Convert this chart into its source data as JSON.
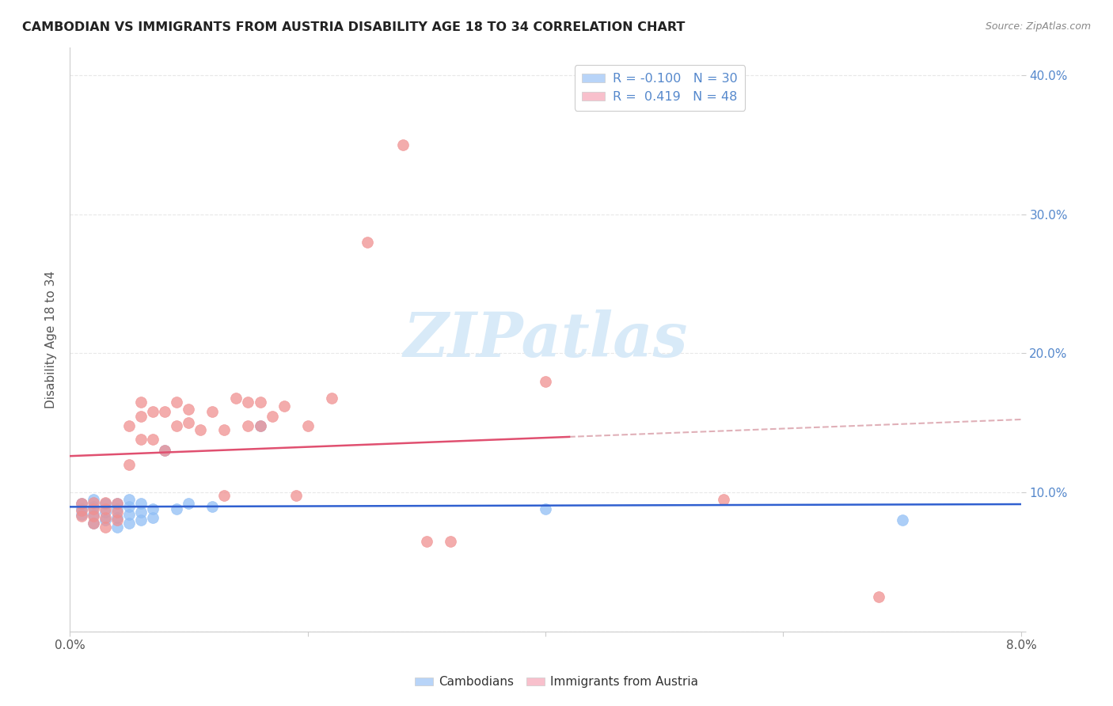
{
  "title": "CAMBODIAN VS IMMIGRANTS FROM AUSTRIA DISABILITY AGE 18 TO 34 CORRELATION CHART",
  "source": "Source: ZipAtlas.com",
  "ylabel": "Disability Age 18 to 34",
  "xlim": [
    0.0,
    0.08
  ],
  "ylim": [
    0.0,
    0.42
  ],
  "yticks": [
    0.0,
    0.1,
    0.2,
    0.3,
    0.4
  ],
  "xticks": [
    0.0,
    0.02,
    0.04,
    0.06,
    0.08
  ],
  "ytick_labels_right": [
    "",
    "10.0%",
    "20.0%",
    "30.0%",
    "40.0%"
  ],
  "cambodian_color": "#90bef5",
  "austria_color": "#f09090",
  "cambodian_legend_color": "#b8d4f8",
  "austria_legend_color": "#f8c0cc",
  "trendline_cambodian_color": "#3060d0",
  "trendline_austria_color": "#e05070",
  "dashed_color": "#e0b0b8",
  "watermark_color": "#d8eaf8",
  "background_color": "#ffffff",
  "grid_color": "#e8e8e8",
  "cambodian_x": [
    0.001,
    0.001,
    0.001,
    0.002,
    0.002,
    0.002,
    0.002,
    0.003,
    0.003,
    0.003,
    0.004,
    0.004,
    0.004,
    0.004,
    0.005,
    0.005,
    0.005,
    0.005,
    0.006,
    0.006,
    0.006,
    0.007,
    0.007,
    0.008,
    0.009,
    0.01,
    0.012,
    0.016,
    0.04,
    0.07
  ],
  "cambodian_y": [
    0.084,
    0.088,
    0.092,
    0.078,
    0.084,
    0.09,
    0.095,
    0.08,
    0.086,
    0.092,
    0.075,
    0.082,
    0.088,
    0.092,
    0.078,
    0.084,
    0.09,
    0.095,
    0.08,
    0.086,
    0.092,
    0.082,
    0.088,
    0.13,
    0.088,
    0.092,
    0.09,
    0.148,
    0.088,
    0.08
  ],
  "austria_x": [
    0.001,
    0.001,
    0.001,
    0.002,
    0.002,
    0.002,
    0.002,
    0.003,
    0.003,
    0.003,
    0.003,
    0.004,
    0.004,
    0.004,
    0.005,
    0.005,
    0.006,
    0.006,
    0.006,
    0.007,
    0.007,
    0.008,
    0.008,
    0.009,
    0.009,
    0.01,
    0.01,
    0.011,
    0.012,
    0.013,
    0.013,
    0.014,
    0.015,
    0.015,
    0.016,
    0.016,
    0.017,
    0.018,
    0.019,
    0.02,
    0.022,
    0.025,
    0.028,
    0.03,
    0.032,
    0.04,
    0.055,
    0.068
  ],
  "austria_y": [
    0.083,
    0.087,
    0.092,
    0.078,
    0.083,
    0.088,
    0.093,
    0.075,
    0.082,
    0.088,
    0.093,
    0.08,
    0.086,
    0.092,
    0.12,
    0.148,
    0.138,
    0.155,
    0.165,
    0.138,
    0.158,
    0.13,
    0.158,
    0.148,
    0.165,
    0.15,
    0.16,
    0.145,
    0.158,
    0.098,
    0.145,
    0.168,
    0.148,
    0.165,
    0.148,
    0.165,
    0.155,
    0.162,
    0.098,
    0.148,
    0.168,
    0.28,
    0.35,
    0.065,
    0.065,
    0.18,
    0.095,
    0.025
  ]
}
